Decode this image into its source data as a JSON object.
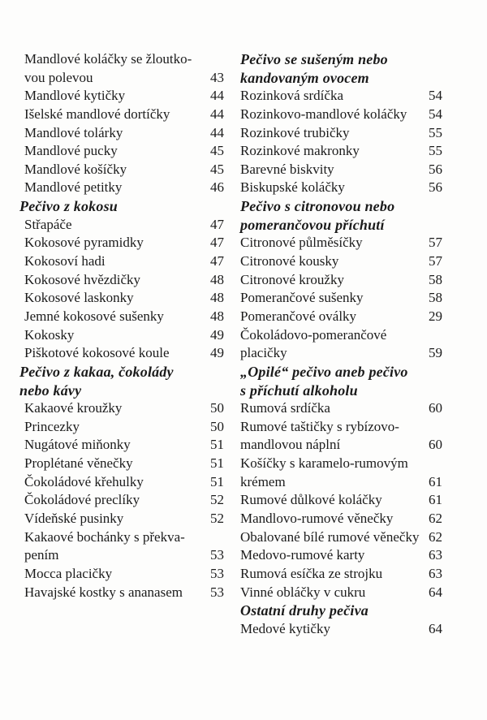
{
  "columns": [
    {
      "entries": [
        {
          "lines": [
            "Mandlové koláčky se žloutko-",
            "vou polevou"
          ],
          "page": "43"
        },
        {
          "lines": [
            "Mandlové kytičky"
          ],
          "page": "44"
        },
        {
          "lines": [
            "Išelské mandlové dortíčky"
          ],
          "page": "44"
        },
        {
          "lines": [
            "Mandlové tolárky"
          ],
          "page": "44"
        },
        {
          "lines": [
            "Mandlové pucky"
          ],
          "page": "45"
        },
        {
          "lines": [
            "Mandlové košíčky"
          ],
          "page": "45"
        },
        {
          "lines": [
            "Mandlové petitky"
          ],
          "page": "46"
        },
        {
          "heading": true,
          "lines": [
            "Pečivo z kokosu"
          ]
        },
        {
          "lines": [
            "Střapáče"
          ],
          "page": "47"
        },
        {
          "lines": [
            "Kokosové pyramidky"
          ],
          "page": "47"
        },
        {
          "lines": [
            "Kokosoví hadi"
          ],
          "page": "47"
        },
        {
          "lines": [
            "Kokosové hvězdičky"
          ],
          "page": "48"
        },
        {
          "lines": [
            "Kokosové laskonky"
          ],
          "page": "48"
        },
        {
          "lines": [
            "Jemné kokosové sušenky"
          ],
          "page": "48"
        },
        {
          "lines": [
            "Kokosky"
          ],
          "page": "49"
        },
        {
          "lines": [
            "Piškotové kokosové koule"
          ],
          "page": "49"
        },
        {
          "heading": true,
          "lines": [
            "Pečivo z kakaa, čokolády",
            "nebo kávy"
          ]
        },
        {
          "lines": [
            "Kakaové kroužky"
          ],
          "page": "50"
        },
        {
          "lines": [
            "Princezky"
          ],
          "page": "50"
        },
        {
          "lines": [
            "Nugátové miňonky"
          ],
          "page": "51"
        },
        {
          "lines": [
            "Proplétané věnečky"
          ],
          "page": "51"
        },
        {
          "lines": [
            "Čokoládové křehulky"
          ],
          "page": "51"
        },
        {
          "lines": [
            "Čokoládové preclíky"
          ],
          "page": "52"
        },
        {
          "lines": [
            "Vídeňské pusinky"
          ],
          "page": "52"
        },
        {
          "lines": [
            "Kakaové bochánky s překva-",
            "pením"
          ],
          "page": "53"
        },
        {
          "lines": [
            "Mocca placičky"
          ],
          "page": "53"
        },
        {
          "lines": [
            "Havajské kostky s ananasem"
          ],
          "page": "53"
        }
      ]
    },
    {
      "entries": [
        {
          "heading": true,
          "lines": [
            "Pečivo se sušeným nebo",
            "kandovaným ovocem"
          ]
        },
        {
          "lines": [
            "Rozinková srdíčka"
          ],
          "page": "54"
        },
        {
          "lines": [
            "Rozinkovo-mandlové koláčky"
          ],
          "page": "54"
        },
        {
          "lines": [
            "Rozinkové trubičky"
          ],
          "page": "55"
        },
        {
          "lines": [
            "Rozinkové makronky"
          ],
          "page": "55"
        },
        {
          "lines": [
            "Barevné biskvity"
          ],
          "page": "56"
        },
        {
          "lines": [
            "Biskupské koláčky"
          ],
          "page": "56"
        },
        {
          "heading": true,
          "lines": [
            "Pečivo s citronovou nebo",
            "pomerančovou příchutí"
          ]
        },
        {
          "lines": [
            "Citronové půlměsíčky"
          ],
          "page": "57"
        },
        {
          "lines": [
            "Citronové kousky"
          ],
          "page": "57"
        },
        {
          "lines": [
            "Citronové kroužky"
          ],
          "page": "58"
        },
        {
          "lines": [
            "Pomerančové sušenky"
          ],
          "page": "58"
        },
        {
          "lines": [
            "Pomerančové oválky"
          ],
          "page": "29"
        },
        {
          "lines": [
            "Čokoládovo-pomerančové",
            "placičky"
          ],
          "page": "59"
        },
        {
          "heading": true,
          "lines": [
            "„Opilé“ pečivo aneb pečivo",
            "s příchutí alkoholu"
          ]
        },
        {
          "lines": [
            "Rumová srdíčka"
          ],
          "page": "60"
        },
        {
          "lines": [
            "Rumové taštičky s rybízovo-",
            "mandlovou náplní"
          ],
          "page": "60"
        },
        {
          "lines": [
            "Košíčky s karamelo-rumovým",
            "krémem"
          ],
          "page": "61"
        },
        {
          "lines": [
            "Rumové důlkové koláčky"
          ],
          "page": "61"
        },
        {
          "lines": [
            "Mandlovo-rumové věnečky"
          ],
          "page": "62"
        },
        {
          "lines": [
            "Obalované bílé rumové věnečky"
          ],
          "page": "62"
        },
        {
          "lines": [
            "Medovo-rumové karty"
          ],
          "page": "63"
        },
        {
          "lines": [
            "Rumová esíčka ze strojku"
          ],
          "page": "63"
        },
        {
          "lines": [
            "Vinné obláčky v cukru"
          ],
          "page": "64"
        },
        {
          "heading": true,
          "lines": [
            "Ostatní druhy pečiva"
          ]
        },
        {
          "lines": [
            "Medové kytičky"
          ],
          "page": "64"
        }
      ]
    }
  ]
}
